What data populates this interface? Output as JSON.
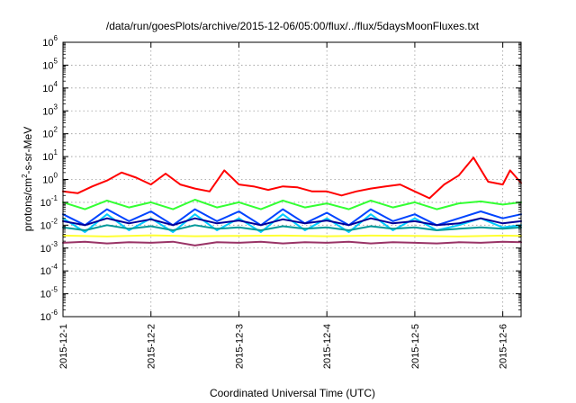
{
  "chart_data": {
    "type": "line",
    "title": "/data/run/goesPlots/archive/2015-12-06/05:00/flux/../flux/5daysMoonFluxes.txt",
    "xlabel": "Coordinated Universal Time (UTC)",
    "ylabel": {
      "prefix": "protons/cm",
      "sup": "2",
      "suffix": "-s-sr-MeV"
    },
    "xscale": "time",
    "yscale": "log",
    "xlim": [
      "2015-12-01T00:00",
      "2015-12-06T05:00"
    ],
    "ylim": [
      1e-06,
      1000000.0
    ],
    "grid": true,
    "x_ticks": [
      "2015-12-1",
      "2015-12-2",
      "2015-12-3",
      "2015-12-4",
      "2015-12-5",
      "2015-12-6"
    ],
    "y_ticks": [
      {
        "value": 1e-06,
        "base": "10",
        "exp": "-6"
      },
      {
        "value": 1e-05,
        "base": "10",
        "exp": "-5"
      },
      {
        "value": 0.0001,
        "base": "10",
        "exp": "-4"
      },
      {
        "value": 0.001,
        "base": "10",
        "exp": "-3"
      },
      {
        "value": 0.01,
        "base": "10",
        "exp": "-2"
      },
      {
        "value": 0.1,
        "base": "10",
        "exp": "-1"
      },
      {
        "value": 1,
        "base": "10",
        "exp": "0"
      },
      {
        "value": 10,
        "base": "10",
        "exp": "1"
      },
      {
        "value": 100,
        "base": "10",
        "exp": "2"
      },
      {
        "value": 1000,
        "base": "10",
        "exp": "3"
      },
      {
        "value": 10000,
        "base": "10",
        "exp": "4"
      },
      {
        "value": 100000,
        "base": "10",
        "exp": "5"
      },
      {
        "value": 1000000,
        "base": "10",
        "exp": "6"
      }
    ],
    "series": [
      {
        "color": "#ff0000",
        "x": [
          "2015-12-01T00:00",
          "2015-12-01T04:00",
          "2015-12-01T08:00",
          "2015-12-01T12:00",
          "2015-12-01T16:00",
          "2015-12-01T20:00",
          "2015-12-02T00:00",
          "2015-12-02T04:00",
          "2015-12-02T08:00",
          "2015-12-02T12:00",
          "2015-12-02T16:00",
          "2015-12-02T20:00",
          "2015-12-03T00:00",
          "2015-12-03T04:00",
          "2015-12-03T08:00",
          "2015-12-03T12:00",
          "2015-12-03T16:00",
          "2015-12-03T20:00",
          "2015-12-04T00:00",
          "2015-12-04T04:00",
          "2015-12-04T08:00",
          "2015-12-04T12:00",
          "2015-12-04T16:00",
          "2015-12-04T20:00",
          "2015-12-05T00:00",
          "2015-12-05T04:00",
          "2015-12-05T08:00",
          "2015-12-05T12:00",
          "2015-12-05T16:00",
          "2015-12-05T20:00",
          "2015-12-06T00:00",
          "2015-12-06T02:00",
          "2015-12-06T05:00"
        ],
        "values": [
          0.3,
          0.25,
          0.5,
          0.9,
          2.0,
          1.2,
          0.6,
          1.8,
          0.6,
          0.4,
          0.3,
          2.5,
          0.6,
          0.5,
          0.35,
          0.5,
          0.45,
          0.3,
          0.3,
          0.2,
          0.3,
          0.4,
          0.5,
          0.6,
          0.3,
          0.15,
          0.6,
          1.5,
          9.0,
          0.8,
          0.6,
          2.5,
          0.7
        ]
      },
      {
        "color": "#33ff33",
        "x": [
          "2015-12-01T00:00",
          "2015-12-01T06:00",
          "2015-12-01T12:00",
          "2015-12-01T18:00",
          "2015-12-02T00:00",
          "2015-12-02T06:00",
          "2015-12-02T12:00",
          "2015-12-02T18:00",
          "2015-12-03T00:00",
          "2015-12-03T06:00",
          "2015-12-03T12:00",
          "2015-12-03T18:00",
          "2015-12-04T00:00",
          "2015-12-04T06:00",
          "2015-12-04T12:00",
          "2015-12-04T18:00",
          "2015-12-05T00:00",
          "2015-12-05T06:00",
          "2015-12-05T12:00",
          "2015-12-05T18:00",
          "2015-12-06T00:00",
          "2015-12-06T05:00"
        ],
        "values": [
          0.1,
          0.05,
          0.12,
          0.06,
          0.1,
          0.05,
          0.13,
          0.06,
          0.1,
          0.05,
          0.12,
          0.06,
          0.09,
          0.05,
          0.12,
          0.06,
          0.1,
          0.05,
          0.09,
          0.11,
          0.08,
          0.1
        ]
      },
      {
        "color": "#00ccff",
        "x": [
          "2015-12-01T00:00",
          "2015-12-01T06:00",
          "2015-12-01T12:00",
          "2015-12-01T18:00",
          "2015-12-02T00:00",
          "2015-12-02T06:00",
          "2015-12-02T12:00",
          "2015-12-02T18:00",
          "2015-12-03T00:00",
          "2015-12-03T06:00",
          "2015-12-03T12:00",
          "2015-12-03T18:00",
          "2015-12-04T00:00",
          "2015-12-04T06:00",
          "2015-12-04T12:00",
          "2015-12-04T18:00",
          "2015-12-05T00:00",
          "2015-12-05T06:00",
          "2015-12-05T12:00",
          "2015-12-05T18:00",
          "2015-12-06T00:00",
          "2015-12-06T05:00"
        ],
        "values": [
          0.02,
          0.005,
          0.03,
          0.006,
          0.02,
          0.005,
          0.03,
          0.006,
          0.02,
          0.005,
          0.03,
          0.006,
          0.02,
          0.005,
          0.03,
          0.006,
          0.02,
          0.006,
          0.01,
          0.02,
          0.008,
          0.01
        ]
      },
      {
        "color": "#0044ff",
        "x": [
          "2015-12-01T00:00",
          "2015-12-01T06:00",
          "2015-12-01T12:00",
          "2015-12-01T18:00",
          "2015-12-02T00:00",
          "2015-12-02T06:00",
          "2015-12-02T12:00",
          "2015-12-02T18:00",
          "2015-12-03T00:00",
          "2015-12-03T06:00",
          "2015-12-03T12:00",
          "2015-12-03T18:00",
          "2015-12-04T00:00",
          "2015-12-04T06:00",
          "2015-12-04T12:00",
          "2015-12-04T18:00",
          "2015-12-05T00:00",
          "2015-12-05T06:00",
          "2015-12-05T12:00",
          "2015-12-05T18:00",
          "2015-12-06T00:00",
          "2015-12-06T05:00"
        ],
        "values": [
          0.03,
          0.01,
          0.05,
          0.015,
          0.04,
          0.01,
          0.05,
          0.015,
          0.04,
          0.01,
          0.05,
          0.012,
          0.035,
          0.01,
          0.05,
          0.015,
          0.03,
          0.01,
          0.02,
          0.04,
          0.02,
          0.03
        ]
      },
      {
        "color": "#000099",
        "x": [
          "2015-12-01T00:00",
          "2015-12-01T06:00",
          "2015-12-01T12:00",
          "2015-12-01T18:00",
          "2015-12-02T00:00",
          "2015-12-02T06:00",
          "2015-12-02T12:00",
          "2015-12-02T18:00",
          "2015-12-03T00:00",
          "2015-12-03T06:00",
          "2015-12-03T12:00",
          "2015-12-03T18:00",
          "2015-12-04T00:00",
          "2015-12-04T06:00",
          "2015-12-04T12:00",
          "2015-12-04T18:00",
          "2015-12-05T00:00",
          "2015-12-05T06:00",
          "2015-12-05T12:00",
          "2015-12-05T18:00",
          "2015-12-06T00:00",
          "2015-12-06T05:00"
        ],
        "values": [
          0.015,
          0.01,
          0.02,
          0.012,
          0.018,
          0.01,
          0.02,
          0.012,
          0.016,
          0.01,
          0.018,
          0.012,
          0.016,
          0.01,
          0.02,
          0.012,
          0.015,
          0.01,
          0.012,
          0.02,
          0.012,
          0.015
        ]
      },
      {
        "color": "#009999",
        "x": [
          "2015-12-01T00:00",
          "2015-12-01T06:00",
          "2015-12-01T12:00",
          "2015-12-01T18:00",
          "2015-12-02T00:00",
          "2015-12-02T06:00",
          "2015-12-02T12:00",
          "2015-12-02T18:00",
          "2015-12-03T00:00",
          "2015-12-03T06:00",
          "2015-12-03T12:00",
          "2015-12-03T18:00",
          "2015-12-04T00:00",
          "2015-12-04T06:00",
          "2015-12-04T12:00",
          "2015-12-04T18:00",
          "2015-12-05T00:00",
          "2015-12-05T06:00",
          "2015-12-05T12:00",
          "2015-12-05T18:00",
          "2015-12-06T00:00",
          "2015-12-06T05:00"
        ],
        "values": [
          0.008,
          0.006,
          0.01,
          0.007,
          0.009,
          0.006,
          0.01,
          0.007,
          0.008,
          0.006,
          0.009,
          0.007,
          0.008,
          0.006,
          0.009,
          0.007,
          0.008,
          0.006,
          0.007,
          0.008,
          0.007,
          0.008
        ]
      },
      {
        "color": "#ffff33",
        "x": [
          "2015-12-01T00:00",
          "2015-12-01T12:00",
          "2015-12-02T00:00",
          "2015-12-02T12:00",
          "2015-12-03T00:00",
          "2015-12-03T12:00",
          "2015-12-04T00:00",
          "2015-12-04T12:00",
          "2015-12-05T00:00",
          "2015-12-05T12:00",
          "2015-12-06T00:00",
          "2015-12-06T05:00"
        ],
        "values": [
          0.0035,
          0.0032,
          0.0036,
          0.0033,
          0.0034,
          0.0035,
          0.0033,
          0.0035,
          0.0034,
          0.0032,
          0.0035,
          0.0034
        ]
      },
      {
        "color": "#993366",
        "x": [
          "2015-12-01T00:00",
          "2015-12-01T06:00",
          "2015-12-01T12:00",
          "2015-12-01T18:00",
          "2015-12-02T00:00",
          "2015-12-02T06:00",
          "2015-12-02T12:00",
          "2015-12-02T18:00",
          "2015-12-03T00:00",
          "2015-12-03T06:00",
          "2015-12-03T12:00",
          "2015-12-03T18:00",
          "2015-12-04T00:00",
          "2015-12-04T06:00",
          "2015-12-04T12:00",
          "2015-12-04T18:00",
          "2015-12-05T00:00",
          "2015-12-05T06:00",
          "2015-12-05T12:00",
          "2015-12-05T18:00",
          "2015-12-06T00:00",
          "2015-12-06T05:00"
        ],
        "values": [
          0.0017,
          0.0019,
          0.0016,
          0.0018,
          0.0017,
          0.0019,
          0.0013,
          0.0018,
          0.0017,
          0.0019,
          0.0016,
          0.0018,
          0.0017,
          0.0019,
          0.0016,
          0.0018,
          0.0017,
          0.0016,
          0.0018,
          0.0017,
          0.0019,
          0.0018
        ]
      }
    ]
  }
}
